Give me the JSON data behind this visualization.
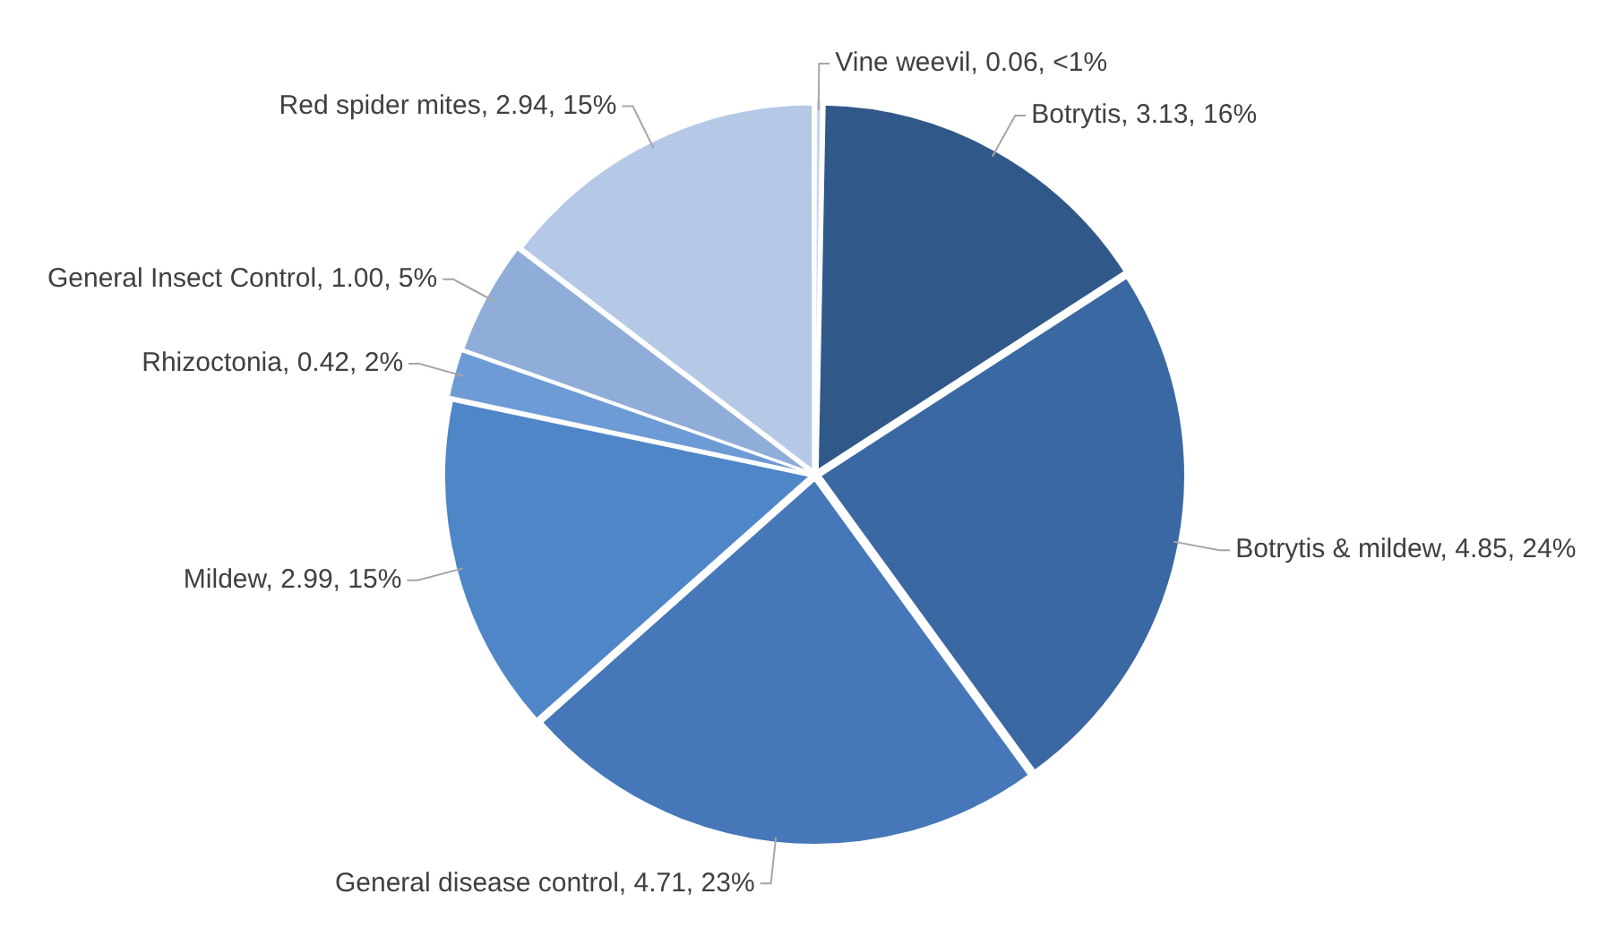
{
  "chart_data": {
    "type": "pie",
    "categories": [
      "Vine weevil",
      "Botrytis",
      "Botrytis & mildew",
      "General disease control",
      "Mildew",
      "Rhizoctonia",
      "General Insect Control",
      "Red spider mites"
    ],
    "values": [
      0.06,
      3.13,
      4.85,
      4.71,
      2.99,
      0.42,
      1.0,
      2.94
    ],
    "value_labels": [
      "0.06, <1%",
      "3.13, 16%",
      "4.85, 24%",
      "4.71, 23%",
      "2.99, 15%",
      "0.42, 2%",
      "1.00, 5%",
      "2.94, 15%"
    ],
    "colors": [
      "#c9d6ec",
      "#30598a",
      "#3a68a2",
      "#4677b8",
      "#4f86c8",
      "#6d9bd6",
      "#8fadd8",
      "#b5c8e6"
    ]
  }
}
